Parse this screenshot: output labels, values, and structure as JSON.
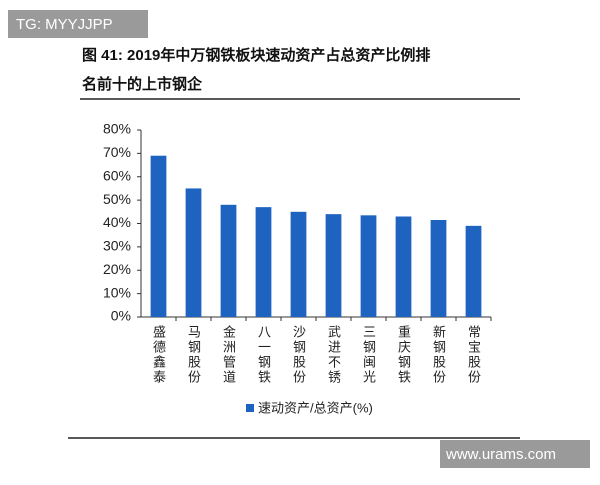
{
  "watermarks": [
    "TG: MYYJJPP",
    "www.urams.com"
  ],
  "chart_data": {
    "type": "bar",
    "title": [
      "图 41: 2019年中万钢铁板块速动资产占总资产比例排",
      "名前十的上市钢企"
    ],
    "categories": [
      "盛德鑫泰",
      "马钢股份",
      "金洲管道",
      "八一钢铁",
      "沙钢股份",
      "武进不锈",
      "三钢闽光",
      "重庆钢铁",
      "新钢股份",
      "常宝股份"
    ],
    "series": [
      {
        "name": "速动资产/总资产(%)",
        "color": "#1f63c0",
        "values": [
          69,
          55,
          48,
          47,
          45,
          44,
          43.5,
          43,
          41.5,
          39
        ]
      }
    ],
    "ylim": [
      0,
      80
    ],
    "yticks": [
      {
        "value": 0,
        "label": "0%"
      },
      {
        "value": 10,
        "label": "10%"
      },
      {
        "value": 20,
        "label": "20%"
      },
      {
        "value": 30,
        "label": "30%"
      },
      {
        "value": 40,
        "label": "40%"
      },
      {
        "value": 50,
        "label": "50%"
      },
      {
        "value": 60,
        "label": "60%"
      },
      {
        "value": 70,
        "label": "70%"
      },
      {
        "value": 80,
        "label": "80%"
      }
    ],
    "grid": false
  }
}
